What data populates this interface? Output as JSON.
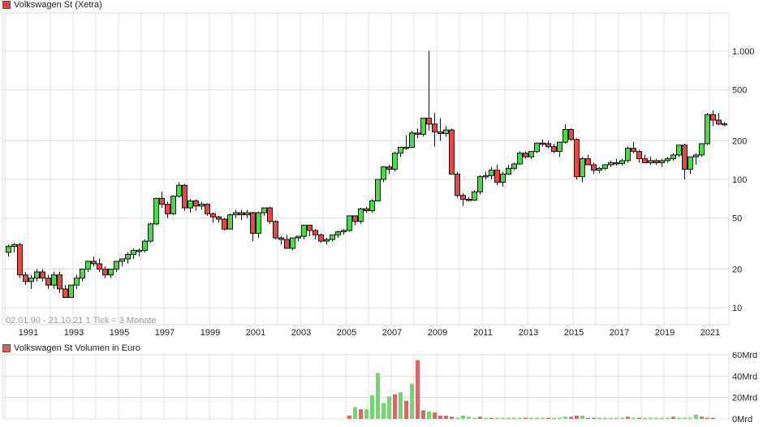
{
  "price_panel": {
    "legend_label": "Volkswagen St (Xetra)",
    "legend_color": "#e84040",
    "range_note": "02.01.90 - 21.10.21   1 Tick = 3 Monate"
  },
  "volume_panel": {
    "legend_label": "Volkswagen St Volumen in Euro",
    "legend_color": "#d86060"
  },
  "colors": {
    "up": "#44dd44",
    "down": "#ee4444",
    "vol_up": "#6cd96c",
    "vol_down": "#d86666",
    "grid": "#dddddd"
  },
  "chart_data": [
    {
      "type": "candlestick",
      "title": "Volkswagen St (Xetra)",
      "scale": "log",
      "x_ticks": [
        "1991",
        "1993",
        "1995",
        "1997",
        "1999",
        "2001",
        "2003",
        "2005",
        "2007",
        "2009",
        "2011",
        "2013",
        "2015",
        "2017",
        "2019",
        "2021"
      ],
      "y_ticks": [
        "10",
        "20",
        "50",
        "100",
        "200",
        "500",
        "1.000"
      ],
      "y_tick_values": [
        10,
        20,
        50,
        100,
        200,
        500,
        1000
      ],
      "period": "quarterly",
      "start": "1990Q1",
      "ohlc": [
        [
          27,
          31,
          25,
          30
        ],
        [
          30,
          32,
          27,
          31
        ],
        [
          31,
          32,
          17,
          18
        ],
        [
          18,
          19,
          15,
          16
        ],
        [
          16,
          18,
          14,
          17
        ],
        [
          17,
          20,
          16,
          19
        ],
        [
          19,
          20,
          16,
          17
        ],
        [
          17,
          18,
          14,
          15
        ],
        [
          15,
          19,
          14,
          18
        ],
        [
          18,
          19,
          13,
          14
        ],
        [
          14,
          15,
          12,
          12
        ],
        [
          12,
          15,
          12,
          15
        ],
        [
          15,
          18,
          14,
          17
        ],
        [
          17,
          20,
          16,
          20
        ],
        [
          20,
          23,
          19,
          23
        ],
        [
          23,
          25,
          21,
          22
        ],
        [
          22,
          24,
          19,
          20
        ],
        [
          20,
          21,
          17,
          18
        ],
        [
          18,
          20,
          17,
          20
        ],
        [
          20,
          23,
          19,
          23
        ],
        [
          23,
          24,
          21,
          24
        ],
        [
          24,
          27,
          22,
          26
        ],
        [
          26,
          29,
          24,
          28
        ],
        [
          28,
          29,
          25,
          28
        ],
        [
          28,
          34,
          27,
          33
        ],
        [
          33,
          46,
          32,
          45
        ],
        [
          45,
          72,
          44,
          71
        ],
        [
          71,
          80,
          60,
          64
        ],
        [
          64,
          67,
          50,
          54
        ],
        [
          54,
          75,
          53,
          74
        ],
        [
          74,
          95,
          72,
          90
        ],
        [
          90,
          92,
          57,
          60
        ],
        [
          60,
          70,
          55,
          68
        ],
        [
          68,
          70,
          57,
          62
        ],
        [
          62,
          67,
          58,
          64
        ],
        [
          64,
          65,
          52,
          54
        ],
        [
          54,
          55,
          46,
          51
        ],
        [
          51,
          52,
          46,
          49
        ],
        [
          49,
          50,
          40,
          41
        ],
        [
          41,
          54,
          41,
          53
        ],
        [
          53,
          58,
          50,
          55
        ],
        [
          55,
          58,
          48,
          53
        ],
        [
          53,
          58,
          50,
          55
        ],
        [
          55,
          56,
          33,
          38
        ],
        [
          38,
          56,
          35,
          55
        ],
        [
          55,
          60,
          52,
          60
        ],
        [
          60,
          61,
          45,
          47
        ],
        [
          47,
          48,
          34,
          35
        ],
        [
          35,
          36,
          31,
          34
        ],
        [
          34,
          37,
          30,
          29
        ],
        [
          29,
          35,
          28,
          35
        ],
        [
          35,
          36,
          33,
          36
        ],
        [
          36,
          44,
          34,
          44
        ],
        [
          44,
          44,
          36,
          40
        ],
        [
          40,
          41,
          34,
          37
        ],
        [
          37,
          38,
          32,
          33
        ],
        [
          33,
          35,
          31,
          34
        ],
        [
          34,
          37,
          33,
          37
        ],
        [
          37,
          40,
          35,
          39
        ],
        [
          39,
          41,
          37,
          40
        ],
        [
          40,
          52,
          39,
          52
        ],
        [
          52,
          52,
          44,
          47
        ],
        [
          47,
          60,
          45,
          59
        ],
        [
          59,
          61,
          55,
          57
        ],
        [
          57,
          70,
          55,
          68
        ],
        [
          68,
          100,
          67,
          100
        ],
        [
          100,
          127,
          95,
          125
        ],
        [
          125,
          130,
          110,
          120
        ],
        [
          120,
          165,
          115,
          160
        ],
        [
          160,
          180,
          150,
          178
        ],
        [
          178,
          220,
          170,
          178
        ],
        [
          178,
          240,
          175,
          230
        ],
        [
          230,
          250,
          210,
          225
        ],
        [
          225,
          280,
          215,
          300
        ],
        [
          300,
          1005,
          240,
          270
        ],
        [
          270,
          330,
          180,
          235
        ],
        [
          235,
          300,
          200,
          228
        ],
        [
          228,
          260,
          215,
          243
        ],
        [
          243,
          250,
          110,
          110
        ],
        [
          110,
          115,
          72,
          75
        ],
        [
          75,
          78,
          62,
          70
        ],
        [
          70,
          73,
          67,
          69
        ],
        [
          69,
          82,
          68,
          80
        ],
        [
          80,
          108,
          76,
          105
        ],
        [
          105,
          115,
          100,
          107
        ],
        [
          107,
          125,
          100,
          118
        ],
        [
          118,
          130,
          90,
          95
        ],
        [
          95,
          115,
          88,
          110
        ],
        [
          110,
          130,
          108,
          122
        ],
        [
          122,
          135,
          118,
          132
        ],
        [
          132,
          165,
          130,
          160
        ],
        [
          160,
          165,
          145,
          150
        ],
        [
          150,
          165,
          145,
          165
        ],
        [
          165,
          185,
          160,
          192
        ],
        [
          192,
          205,
          180,
          190
        ],
        [
          190,
          200,
          175,
          180
        ],
        [
          180,
          190,
          160,
          165
        ],
        [
          165,
          195,
          150,
          195
        ],
        [
          195,
          270,
          190,
          245
        ],
        [
          245,
          250,
          200,
          205
        ],
        [
          205,
          210,
          100,
          105
        ],
        [
          105,
          150,
          95,
          145
        ],
        [
          145,
          155,
          130,
          130
        ],
        [
          130,
          135,
          110,
          118
        ],
        [
          118,
          125,
          112,
          122
        ],
        [
          122,
          130,
          118,
          130
        ],
        [
          130,
          140,
          125,
          135
        ],
        [
          135,
          145,
          128,
          133
        ],
        [
          133,
          145,
          128,
          140
        ],
        [
          140,
          180,
          135,
          175
        ],
        [
          175,
          195,
          160,
          165
        ],
        [
          165,
          170,
          135,
          145
        ],
        [
          145,
          155,
          135,
          135
        ],
        [
          135,
          150,
          130,
          140
        ],
        [
          140,
          145,
          130,
          135
        ],
        [
          135,
          145,
          125,
          140
        ],
        [
          140,
          150,
          135,
          145
        ],
        [
          145,
          160,
          140,
          155
        ],
        [
          155,
          185,
          150,
          185
        ],
        [
          185,
          190,
          100,
          120
        ],
        [
          120,
          145,
          110,
          150
        ],
        [
          150,
          160,
          130,
          155
        ],
        [
          155,
          185,
          150,
          190
        ],
        [
          190,
          330,
          185,
          320
        ],
        [
          320,
          345,
          260,
          290
        ],
        [
          290,
          330,
          265,
          270
        ],
        [
          270,
          280,
          260,
          272
        ]
      ]
    },
    {
      "type": "bar",
      "title": "Volkswagen St Volumen in Euro",
      "y_ticks": [
        "0Mrd",
        "20Mrd",
        "40Mrd",
        "60Mrd"
      ],
      "ylim": [
        0,
        60
      ],
      "unit": "Mrd EUR",
      "start": "2005Q1",
      "values": [
        3,
        11,
        9,
        9,
        22,
        43,
        15,
        21,
        23,
        25,
        17,
        33,
        55,
        8,
        7,
        6,
        3,
        3,
        2,
        1,
        3,
        2,
        1,
        2,
        1,
        1,
        1,
        1,
        1,
        1,
        1,
        1,
        1,
        1,
        1,
        1,
        1,
        1,
        2,
        2,
        3,
        3,
        1,
        1,
        1,
        1,
        1,
        1,
        1,
        2,
        1,
        1,
        1,
        1,
        1,
        1,
        1,
        2,
        1,
        1,
        1,
        4,
        2,
        1,
        1
      ],
      "colors": [
        "d",
        "u",
        "d",
        "u",
        "u",
        "u",
        "u",
        "u",
        "d",
        "u",
        "d",
        "u",
        "d",
        "d",
        "u",
        "d",
        "d",
        "d",
        "d",
        "u",
        "u",
        "u",
        "u",
        "d",
        "u",
        "d",
        "u",
        "u",
        "u",
        "u",
        "u",
        "d",
        "u",
        "u",
        "u",
        "d",
        "u",
        "u",
        "u",
        "d",
        "d",
        "u",
        "d",
        "d",
        "u",
        "u",
        "u",
        "u",
        "u",
        "d",
        "u",
        "d",
        "u",
        "u",
        "u",
        "u",
        "u",
        "d",
        "u",
        "u",
        "u",
        "u",
        "d",
        "d",
        "d"
      ]
    }
  ]
}
